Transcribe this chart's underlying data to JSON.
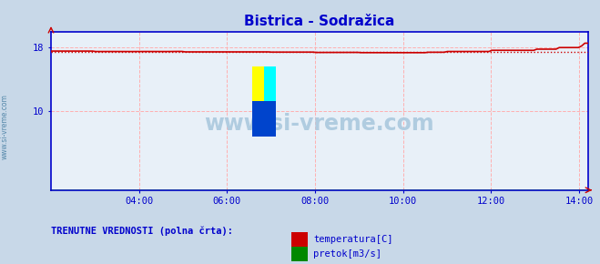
{
  "title": "Bistrica - Sodražica",
  "title_color": "#0000cc",
  "bg_color": "#c8d8e8",
  "plot_bg_color": "#e8f0f8",
  "grid_color": "#ffb0b0",
  "axis_color": "#0000cc",
  "xlabel_ticks": [
    "04:00",
    "06:00",
    "08:00",
    "10:00",
    "12:00",
    "14:00"
  ],
  "xtick_positions": [
    2,
    4,
    6,
    8,
    10,
    12
  ],
  "xmin": 0,
  "xmax": 12.2,
  "ymin": 0,
  "ymax": 20,
  "ytick_vals": [
    10,
    18
  ],
  "temp_color": "#cc0000",
  "temp_avg_color": "#cc0000",
  "pretok_color": "#008800",
  "watermark": "www.si-vreme.com",
  "watermark_color": "#b0cce0",
  "legend_label1": "temperatura[C]",
  "legend_label2": "pretok[m3/s]",
  "legend_color1": "#cc0000",
  "legend_color2": "#008800",
  "side_label": "www.si-vreme.com",
  "n_points": 169,
  "temp_avg": 17.48
}
